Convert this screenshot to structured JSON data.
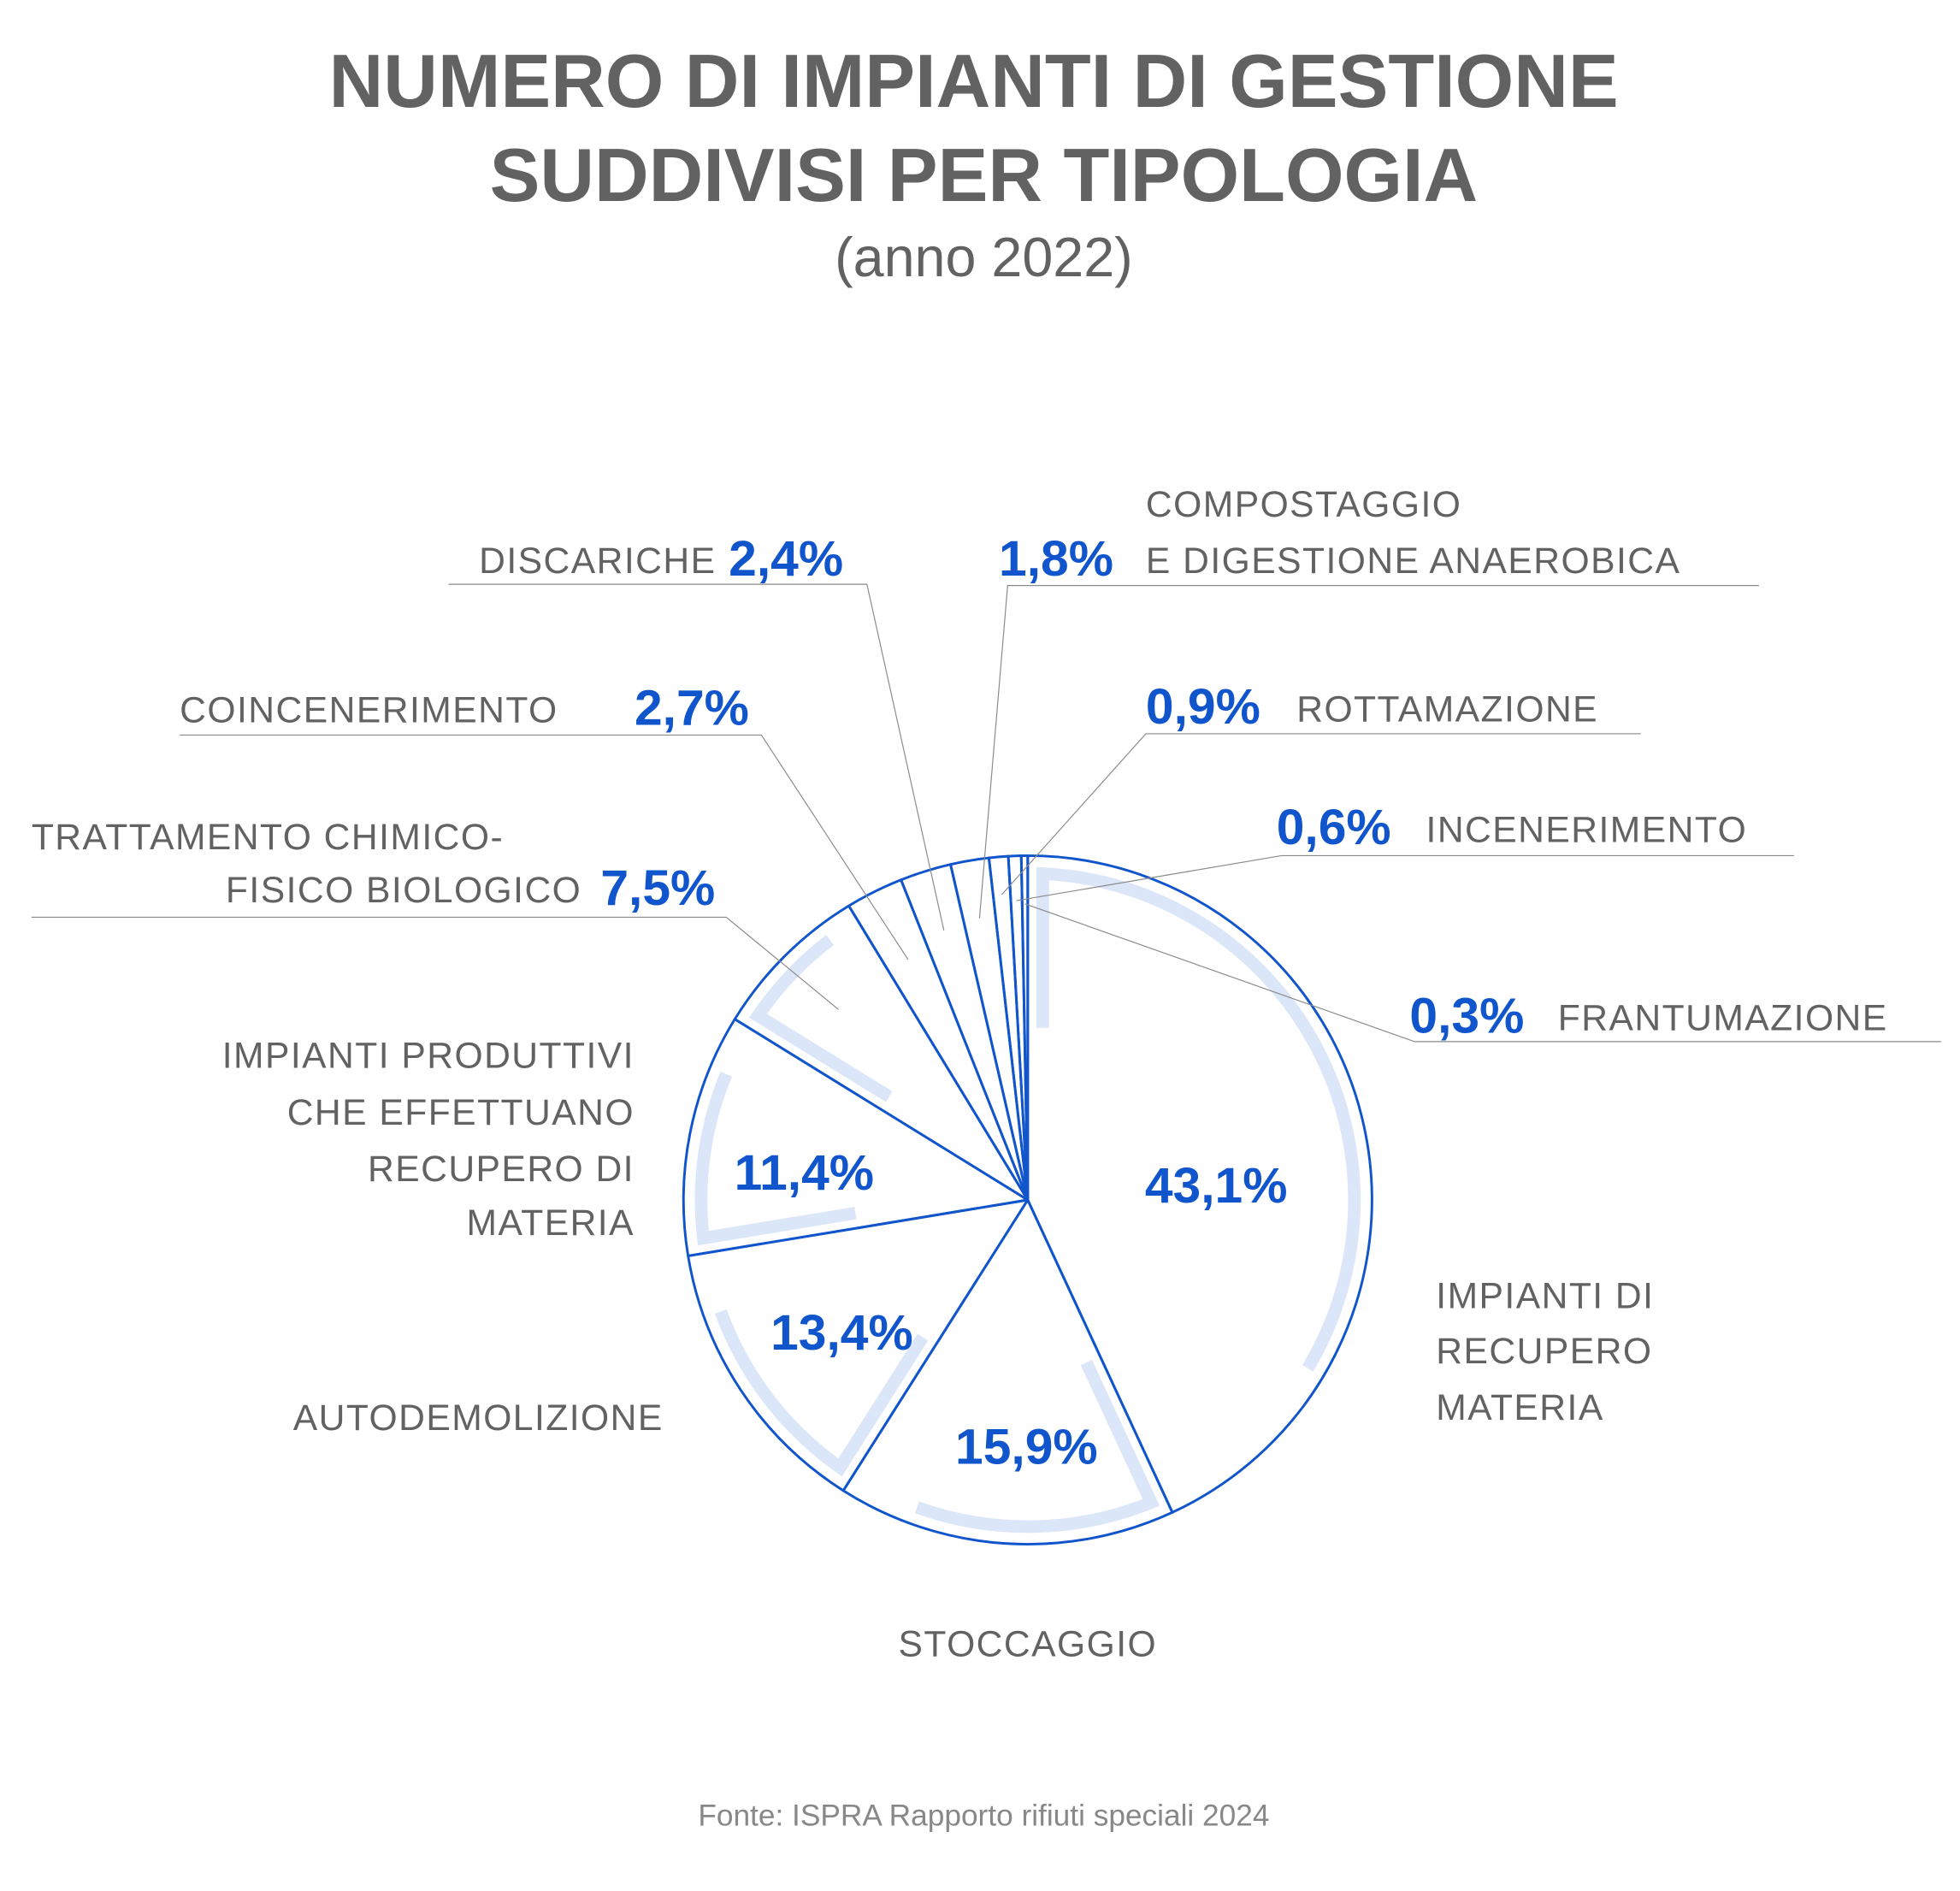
{
  "title": {
    "line1": "NUMERO DI IMPIANTI DI GESTIONE",
    "line2": "SUDDIVISI PER TIPOLOGIA",
    "subtitle": "(anno 2022)"
  },
  "source": "Fonte: ISPRA Rapporto rifiuti speciali 2024",
  "colors": {
    "accent": "#1155cc",
    "highlight": "#dbe6f9",
    "text": "#626262"
  },
  "chart_data": {
    "type": "pie",
    "title": "NUMERO DI IMPIANTI DI GESTIONE SUDDIVISI PER TIPOLOGIA",
    "subtitle": "(anno 2022)",
    "start": "top, clockwise",
    "slices": [
      {
        "name": "IMPIANTI DI RECUPERO MATERIA",
        "lines": [
          "IMPIANTI DI",
          "RECUPERO",
          "MATERIA"
        ],
        "value": 43.1,
        "label": "43,1%"
      },
      {
        "name": "STOCCAGGIO",
        "lines": [
          "STOCCAGGIO"
        ],
        "value": 15.9,
        "label": "15,9%"
      },
      {
        "name": "AUTODEMOLIZIONE",
        "lines": [
          "AUTODEMOLIZIONE"
        ],
        "value": 13.4,
        "label": "13,4%"
      },
      {
        "name": "IMPIANTI PRODUTTIVI CHE EFFETTUANO RECUPERO DI MATERIA",
        "lines": [
          "IMPIANTI PRODUTTIVI",
          "CHE EFFETTUANO",
          "RECUPERO DI",
          "MATERIA"
        ],
        "value": 11.4,
        "label": "11,4%"
      },
      {
        "name": "TRATTAMENTO CHIMICO-FISICO BIOLOGICO",
        "lines": [
          "TRATTAMENTO CHIMICO-",
          "FISICO BIOLOGICO"
        ],
        "value": 7.5,
        "label": "7,5%"
      },
      {
        "name": "COINCENERIMENTO",
        "lines": [
          "COINCENERIMENTO"
        ],
        "value": 2.7,
        "label": "2,7%"
      },
      {
        "name": "DISCARICHE",
        "lines": [
          "DISCARICHE"
        ],
        "value": 2.4,
        "label": "2,4%"
      },
      {
        "name": "COMPOSTAGGIO E DIGESTIONE ANAEROBICA",
        "lines": [
          "COMPOSTAGGIO",
          "E DIGESTIONE ANAEROBICA"
        ],
        "value": 1.8,
        "label": "1,8%"
      },
      {
        "name": "ROTTAMAZIONE",
        "lines": [
          "ROTTAMAZIONE"
        ],
        "value": 0.9,
        "label": "0,9%"
      },
      {
        "name": "INCENERIMENTO",
        "lines": [
          "INCENERIMENTO"
        ],
        "value": 0.6,
        "label": "0,6%"
      },
      {
        "name": "FRANTUMAZIONE",
        "lines": [
          "FRANTUMAZIONE"
        ],
        "value": 0.3,
        "label": "0,3%"
      }
    ]
  }
}
